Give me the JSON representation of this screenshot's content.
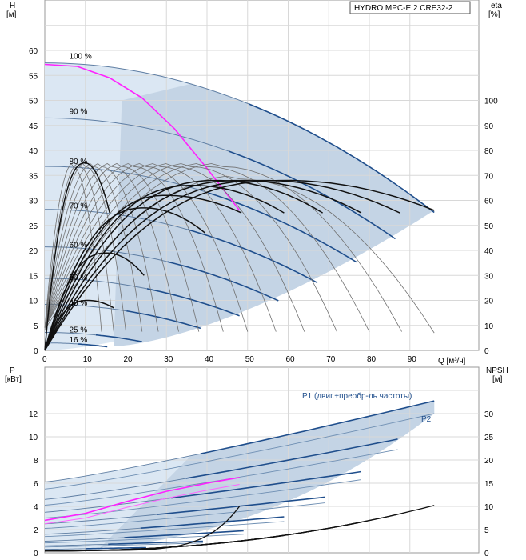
{
  "chart_data": [
    {
      "type": "line",
      "title": "HYDRO MPC-E 2 CRE32-2",
      "x_unit": "Q [м³/ч]",
      "y_left_label": "H",
      "y_left_unit": "[м]",
      "y_right_label": "eta",
      "y_right_unit": "[%]",
      "xlim": [
        0,
        100
      ],
      "ylim_left": [
        0,
        65
      ],
      "ylim_right": [
        0,
        130
      ],
      "x_ticks": [
        "0",
        "10",
        "20",
        "30",
        "40",
        "50",
        "60",
        "70",
        "80",
        "90"
      ],
      "y_left_ticks": [
        "0",
        "5",
        "10",
        "15",
        "20",
        "25",
        "30",
        "35",
        "40",
        "45",
        "50",
        "55",
        "60"
      ],
      "y_right_ticks": [
        "0",
        "10",
        "20",
        "30",
        "40",
        "50",
        "60",
        "70",
        "80",
        "90",
        "100"
      ],
      "speed_labels": [
        {
          "text": "100 %",
          "x": 6,
          "y": 58.3
        },
        {
          "text": "90 %",
          "x": 6,
          "y": 47.3
        },
        {
          "text": "80 %",
          "x": 6,
          "y": 37.3
        },
        {
          "text": "70 %",
          "x": 6,
          "y": 28.4
        },
        {
          "text": "60 %",
          "x": 6,
          "y": 20.6
        },
        {
          "text": "50 %",
          "x": 6,
          "y": 14.1
        },
        {
          "text": "40 %",
          "x": 6,
          "y": 9.0
        },
        {
          "text": "25 %",
          "x": 6,
          "y": 3.6
        },
        {
          "text": "16 %",
          "x": 6,
          "y": 1.6
        }
      ],
      "head_curves": [
        {
          "speed": 100,
          "h0": 57.5,
          "qmax": 96
        },
        {
          "speed": 90,
          "h0": 46.5,
          "qmax": 86.4
        },
        {
          "speed": 80,
          "h0": 36.8,
          "qmax": 76.8
        },
        {
          "speed": 70,
          "h0": 28.2,
          "qmax": 67.2
        },
        {
          "speed": 60,
          "h0": 20.7,
          "qmax": 57.6
        },
        {
          "speed": 50,
          "h0": 14.4,
          "qmax": 48
        },
        {
          "speed": 40,
          "h0": 9.2,
          "qmax": 38.4
        },
        {
          "speed": 25,
          "h0": 3.6,
          "qmax": 24
        },
        {
          "speed": 16,
          "h0": 1.5,
          "qmax": 15.4
        }
      ],
      "system_curve": {
        "name": "100 % (1 pump)",
        "x": [
          0,
          8,
          16,
          24,
          32,
          40,
          48
        ],
        "y": [
          57.2,
          56.8,
          54.5,
          50.5,
          44.3,
          36.4,
          28.0
        ]
      },
      "efficiency_curves": [
        {
          "qmax": 14,
          "eta_peak": 75
        },
        {
          "qmax": 17,
          "eta_peak": 75
        },
        {
          "qmax": 20,
          "eta_peak": 75
        },
        {
          "qmax": 24,
          "eta_peak": 75
        },
        {
          "qmax": 28,
          "eta_peak": 75
        },
        {
          "qmax": 33,
          "eta_peak": 75
        },
        {
          "qmax": 38,
          "eta_peak": 75
        },
        {
          "qmax": 44,
          "eta_peak": 75
        },
        {
          "qmax": 50,
          "eta_peak": 75
        },
        {
          "qmax": 57,
          "eta_peak": 75
        },
        {
          "qmax": 64,
          "eta_peak": 75
        },
        {
          "qmax": 72,
          "eta_peak": 75
        },
        {
          "qmax": 80,
          "eta_peak": 75
        },
        {
          "qmax": 88,
          "eta_peak": 75
        },
        {
          "qmax": 96,
          "eta_peak": 70
        }
      ],
      "bold_efficiency_curves": [
        {
          "q_end": 24.5,
          "eta_peak": 39,
          "eta_end": 30
        },
        {
          "q_end": 17,
          "eta_peak": 20,
          "eta_end": 17
        },
        {
          "q_end": 39.5,
          "eta_peak": 57,
          "eta_end": 47
        },
        {
          "q_end": 48.5,
          "eta_peak": 62,
          "eta_end": 55
        },
        {
          "q_end": 59,
          "eta_peak": 66,
          "eta_end": 55
        },
        {
          "q_end": 68.5,
          "eta_peak": 68,
          "eta_end": 55
        },
        {
          "q_end": 78,
          "eta_peak": 68,
          "eta_end": 55
        },
        {
          "q_end": 87.5,
          "eta_peak": 68,
          "eta_end": 55
        },
        {
          "q_end": 96,
          "eta_peak": 68,
          "eta_end": 56
        },
        {
          "q_end": 16,
          "eta_peak": 75,
          "eta_end": 55
        }
      ]
    },
    {
      "type": "line",
      "y_left_label": "P",
      "y_left_unit": "[кВт]",
      "y_right_label": "NPSH",
      "y_right_unit": "[м]",
      "xlim": [
        0,
        100
      ],
      "ylim_left": [
        0,
        14
      ],
      "ylim_right": [
        0,
        35
      ],
      "y_left_ticks": [
        "0",
        "2",
        "4",
        "6",
        "8",
        "10",
        "12"
      ],
      "y_right_ticks": [
        "0",
        "5",
        "10",
        "15",
        "20",
        "25",
        "30"
      ],
      "legend": [
        "P1 (двиг.+преобр-ль частоты)",
        "P2"
      ],
      "p1_curves": [
        {
          "p0": 6.1,
          "p_end": 13.1,
          "qmax": 96
        },
        {
          "p0": 4.6,
          "p_end": 9.8,
          "qmax": 87
        },
        {
          "p0": 3.5,
          "p_end": 7.0,
          "qmax": 78
        },
        {
          "p0": 2.5,
          "p_end": 4.8,
          "qmax": 69
        },
        {
          "p0": 1.6,
          "p_end": 3.1,
          "qmax": 59
        },
        {
          "p0": 1.0,
          "p_end": 1.9,
          "qmax": 49
        },
        {
          "p0": 0.6,
          "p_end": 1.0,
          "qmax": 39
        },
        {
          "p0": 0.3,
          "p_end": 0.45,
          "qmax": 25
        }
      ],
      "p2_curves": [
        {
          "p0": 5.5,
          "p_end": 12.0,
          "qmax": 96
        },
        {
          "p0": 4.1,
          "p_end": 8.9,
          "qmax": 87
        },
        {
          "p0": 3.0,
          "p_end": 6.3,
          "qmax": 78
        },
        {
          "p0": 2.1,
          "p_end": 4.3,
          "qmax": 69
        },
        {
          "p0": 1.4,
          "p_end": 2.7,
          "qmax": 59
        },
        {
          "p0": 0.85,
          "p_end": 1.6,
          "qmax": 49
        },
        {
          "p0": 0.5,
          "p_end": 0.85,
          "qmax": 39
        }
      ],
      "p_single_pump": {
        "x": [
          0,
          10,
          20,
          30,
          40,
          48
        ],
        "y": [
          2.8,
          3.4,
          4.4,
          5.3,
          6.0,
          6.5
        ]
      },
      "p_single_pump_p2": {
        "x": [
          0,
          10,
          20,
          30,
          40,
          48
        ],
        "y": [
          2.5,
          3.0,
          3.9,
          4.7,
          5.4,
          5.9
        ]
      },
      "npsh_curves": [
        {
          "q_end": 96,
          "npsh_end": 10.2
        },
        {
          "q_end": 87,
          "npsh_end": 8.3
        },
        {
          "q_end": 78,
          "npsh_end": 6.6
        },
        {
          "q_end": 68,
          "npsh_end": 5.0
        },
        {
          "q_end": 59,
          "npsh_end": 3.7
        },
        {
          "q_end": 49,
          "npsh_end": 2.6
        },
        {
          "q_end": 48,
          "npsh_end": 10.0,
          "steep": true
        }
      ]
    }
  ]
}
